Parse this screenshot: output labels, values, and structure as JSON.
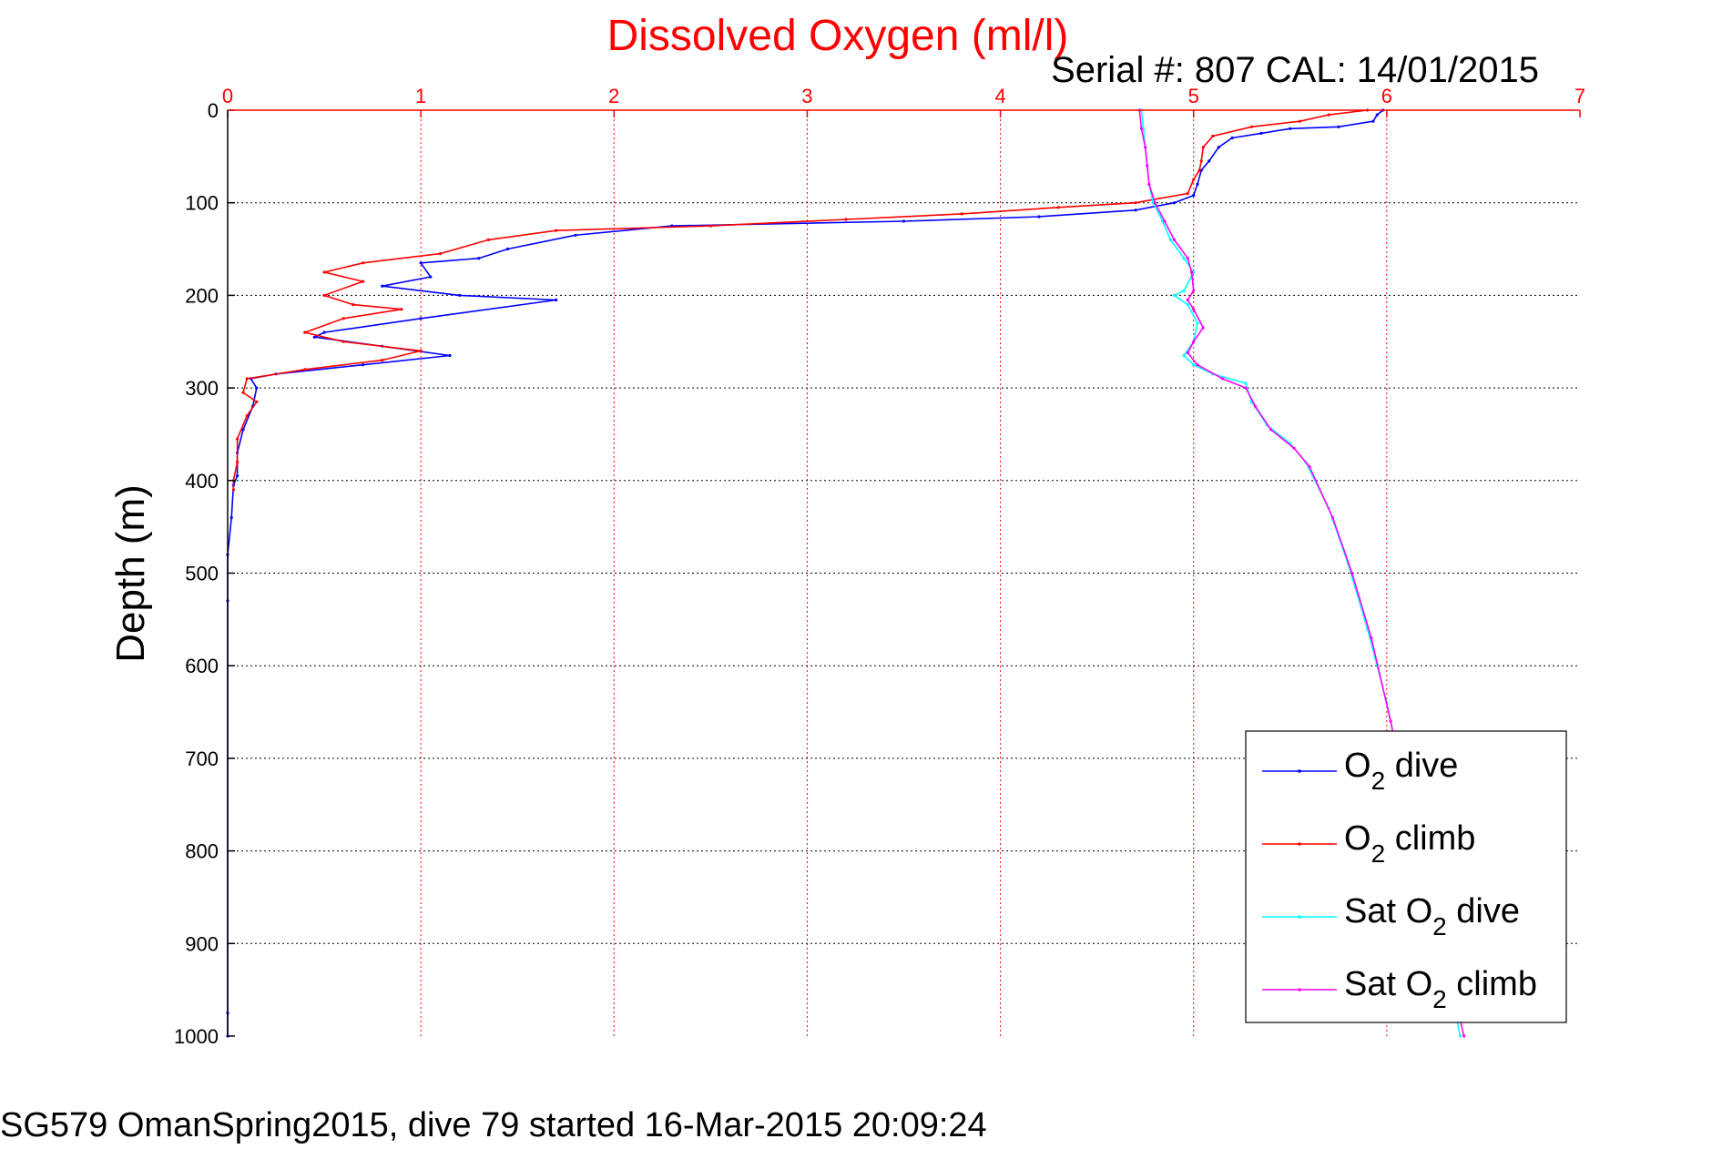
{
  "chart_data": {
    "type": "line",
    "title": "Dissolved Oxygen (ml/l)",
    "subtitle": "Serial #: 807  CAL: 14/01/2015",
    "ylabel": "Depth (m)",
    "xlim": [
      0,
      7
    ],
    "ylim": [
      0,
      1000
    ],
    "y_reversed": true,
    "x_axis_position": "top",
    "x_ticks": [
      "0",
      "1",
      "2",
      "3",
      "4",
      "5",
      "6",
      "7"
    ],
    "y_ticks": [
      "0",
      "100",
      "200",
      "300",
      "400",
      "500",
      "600",
      "700",
      "800",
      "900",
      "1000"
    ],
    "grid": true,
    "legend_position": "bottom-right",
    "colors": {
      "axis_x": "#ff0000",
      "grid_x": "#ff0000",
      "grid_y": "#000000"
    },
    "series": [
      {
        "name": "O2 dive",
        "legend_main": "O",
        "legend_sub": "2",
        "legend_rest": " dive",
        "color": "#0000ff",
        "points": [
          [
            5.98,
            0
          ],
          [
            5.95,
            5
          ],
          [
            5.93,
            12
          ],
          [
            5.75,
            18
          ],
          [
            5.5,
            20
          ],
          [
            5.35,
            25
          ],
          [
            5.2,
            30
          ],
          [
            5.13,
            40
          ],
          [
            5.08,
            55
          ],
          [
            5.04,
            65
          ],
          [
            5.02,
            80
          ],
          [
            5.0,
            92
          ],
          [
            4.9,
            100
          ],
          [
            4.7,
            108
          ],
          [
            4.2,
            115
          ],
          [
            3.5,
            120
          ],
          [
            2.3,
            125
          ],
          [
            1.8,
            135
          ],
          [
            1.45,
            150
          ],
          [
            1.3,
            160
          ],
          [
            1.0,
            165
          ],
          [
            1.05,
            180
          ],
          [
            0.8,
            190
          ],
          [
            1.2,
            200
          ],
          [
            1.7,
            205
          ],
          [
            1.0,
            225
          ],
          [
            0.5,
            240
          ],
          [
            0.45,
            245
          ],
          [
            0.8,
            255
          ],
          [
            1.15,
            265
          ],
          [
            0.7,
            275
          ],
          [
            0.25,
            285
          ],
          [
            0.12,
            290
          ],
          [
            0.15,
            300
          ],
          [
            0.13,
            320
          ],
          [
            0.08,
            345
          ],
          [
            0.05,
            370
          ],
          [
            0.05,
            395
          ],
          [
            0.03,
            405
          ],
          [
            0.02,
            440
          ],
          [
            0.0,
            480
          ],
          [
            0.0,
            530
          ],
          [
            0.0,
            975
          ],
          [
            0.0,
            1000
          ]
        ]
      },
      {
        "name": "O2 climb",
        "legend_main": "O",
        "legend_sub": "2",
        "legend_rest": " climb",
        "color": "#ff0000",
        "points": [
          [
            5.9,
            0
          ],
          [
            5.7,
            5
          ],
          [
            5.55,
            12
          ],
          [
            5.3,
            18
          ],
          [
            5.1,
            28
          ],
          [
            5.05,
            40
          ],
          [
            5.04,
            55
          ],
          [
            5.03,
            65
          ],
          [
            5.0,
            75
          ],
          [
            4.97,
            90
          ],
          [
            4.7,
            100
          ],
          [
            4.3,
            105
          ],
          [
            3.8,
            112
          ],
          [
            3.2,
            118
          ],
          [
            2.5,
            125
          ],
          [
            1.7,
            130
          ],
          [
            1.35,
            140
          ],
          [
            1.1,
            155
          ],
          [
            0.7,
            165
          ],
          [
            0.5,
            175
          ],
          [
            0.7,
            185
          ],
          [
            0.5,
            200
          ],
          [
            0.65,
            210
          ],
          [
            0.9,
            215
          ],
          [
            0.6,
            225
          ],
          [
            0.4,
            240
          ],
          [
            0.6,
            250
          ],
          [
            1.0,
            260
          ],
          [
            0.8,
            270
          ],
          [
            0.4,
            280
          ],
          [
            0.1,
            290
          ],
          [
            0.08,
            305
          ],
          [
            0.15,
            315
          ],
          [
            0.1,
            330
          ],
          [
            0.05,
            355
          ],
          [
            0.05,
            380
          ],
          [
            0.03,
            400
          ],
          [
            0.03,
            410
          ]
        ]
      },
      {
        "name": "Sat O2 dive",
        "legend_main": "Sat O",
        "legend_sub": "2",
        "legend_rest": " dive",
        "color": "#00ffff",
        "points": [
          [
            4.73,
            0
          ],
          [
            4.74,
            20
          ],
          [
            4.75,
            40
          ],
          [
            4.76,
            60
          ],
          [
            4.77,
            80
          ],
          [
            4.79,
            100
          ],
          [
            4.84,
            120
          ],
          [
            4.88,
            140
          ],
          [
            4.95,
            160
          ],
          [
            5.0,
            175
          ],
          [
            4.95,
            195
          ],
          [
            4.9,
            200
          ],
          [
            4.97,
            210
          ],
          [
            5.02,
            230
          ],
          [
            5.0,
            250
          ],
          [
            4.95,
            265
          ],
          [
            5.0,
            275
          ],
          [
            5.1,
            285
          ],
          [
            5.27,
            295
          ],
          [
            5.3,
            315
          ],
          [
            5.38,
            340
          ],
          [
            5.5,
            360
          ],
          [
            5.58,
            380
          ],
          [
            5.7,
            430
          ],
          [
            5.8,
            490
          ],
          [
            5.9,
            560
          ],
          [
            6.0,
            640
          ],
          [
            6.1,
            740
          ],
          [
            6.2,
            840
          ],
          [
            6.3,
            920
          ],
          [
            6.38,
            1000
          ]
        ]
      },
      {
        "name": "Sat O2 climb",
        "legend_main": "Sat O",
        "legend_sub": "2",
        "legend_rest": " climb",
        "color": "#ff00ff",
        "points": [
          [
            4.72,
            0
          ],
          [
            4.73,
            20
          ],
          [
            4.75,
            40
          ],
          [
            4.76,
            60
          ],
          [
            4.77,
            80
          ],
          [
            4.8,
            100
          ],
          [
            4.85,
            120
          ],
          [
            4.9,
            140
          ],
          [
            4.97,
            160
          ],
          [
            4.99,
            175
          ],
          [
            5.0,
            195
          ],
          [
            4.97,
            205
          ],
          [
            5.0,
            215
          ],
          [
            5.05,
            235
          ],
          [
            5.0,
            250
          ],
          [
            4.97,
            262
          ],
          [
            5.02,
            275
          ],
          [
            5.15,
            290
          ],
          [
            5.27,
            300
          ],
          [
            5.32,
            320
          ],
          [
            5.4,
            345
          ],
          [
            5.52,
            365
          ],
          [
            5.6,
            385
          ],
          [
            5.72,
            440
          ],
          [
            5.82,
            500
          ],
          [
            5.92,
            570
          ],
          [
            6.02,
            660
          ],
          [
            6.12,
            760
          ],
          [
            6.22,
            850
          ],
          [
            6.32,
            930
          ],
          [
            6.4,
            1000
          ]
        ]
      }
    ]
  },
  "footer": "SG579 OmanSpring2015, dive 79 started 16-Mar-2015 20:09:24"
}
